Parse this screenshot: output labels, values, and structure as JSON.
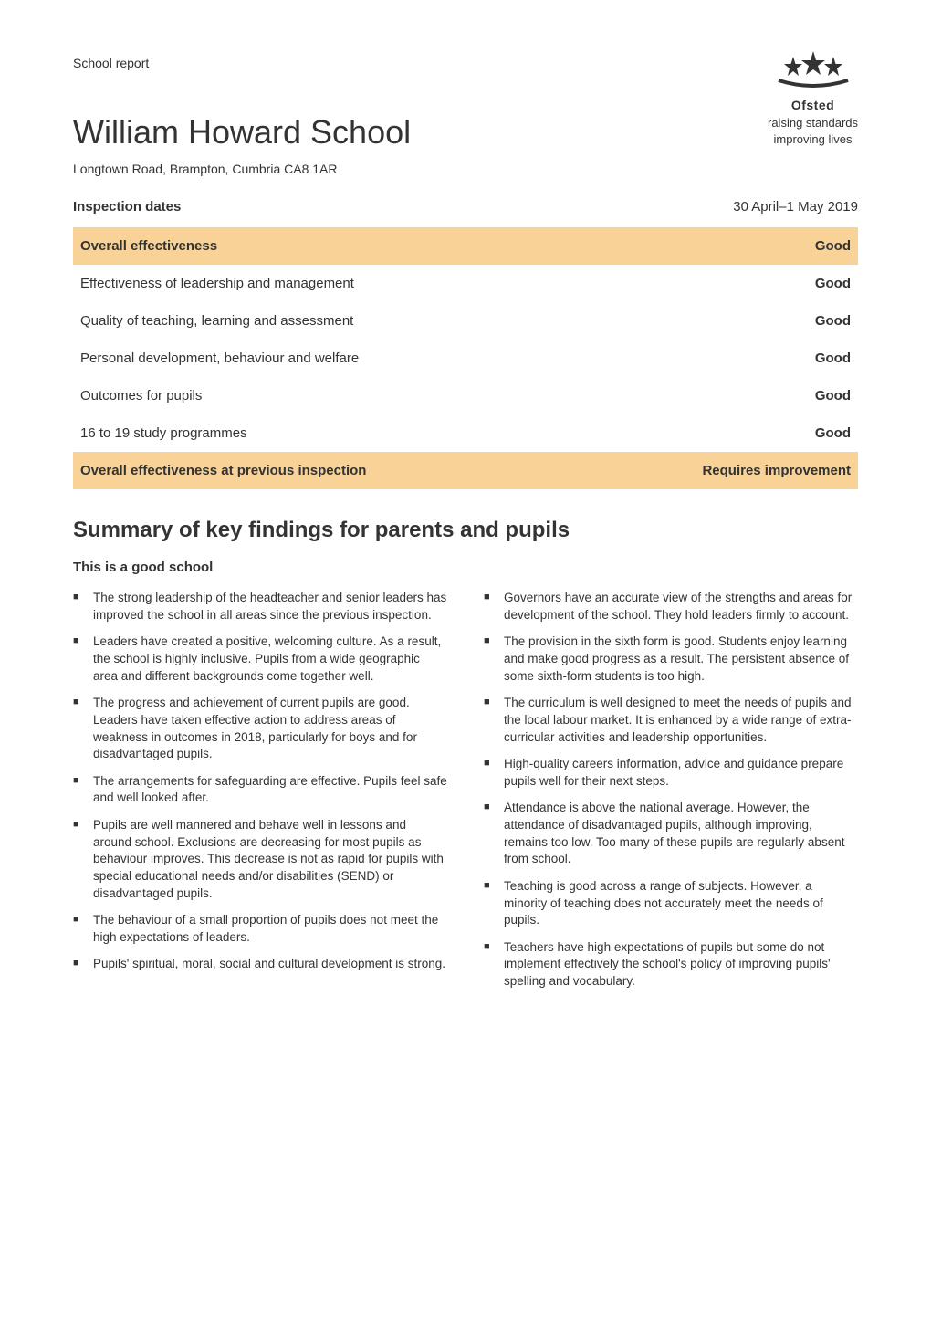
{
  "header": {
    "label": "School report",
    "logo": {
      "name": "Ofsted",
      "line2": "raising standards",
      "line3": "improving lives"
    }
  },
  "title": "William Howard School",
  "subtitle": "Longtown Road, Brampton, Cumbria CA8 1AR",
  "inspection": {
    "label": "Inspection dates",
    "dates": "30 April–1 May 2019"
  },
  "effectiveness": {
    "rows": [
      {
        "label": "Overall effectiveness",
        "value": "Good",
        "highlight": true
      },
      {
        "label": "Effectiveness of leadership and management",
        "value": "Good",
        "highlight": false
      },
      {
        "label": "Quality of teaching, learning and assessment",
        "value": "Good",
        "highlight": false
      },
      {
        "label": "Personal development, behaviour and welfare",
        "value": "Good",
        "highlight": false
      },
      {
        "label": "Outcomes for pupils",
        "value": "Good",
        "highlight": false
      },
      {
        "label": "16 to 19 study programmes",
        "value": "Good",
        "highlight": false
      },
      {
        "label": "Overall effectiveness at previous inspection",
        "value": "Requires improvement",
        "highlight": true
      }
    ],
    "highlight_color": "#f8d296"
  },
  "summary": {
    "heading": "Summary of key findings for parents and pupils",
    "subheading": "This is a good school",
    "left_bullets": [
      "The strong leadership of the headteacher and senior leaders has improved the school in all areas since the previous inspection.",
      "Leaders have created a positive, welcoming culture. As a result, the school is highly inclusive. Pupils from a wide geographic area and different backgrounds come together well.",
      "The progress and achievement of current pupils are good. Leaders have taken effective action to address areas of weakness in outcomes in 2018, particularly for boys and for disadvantaged pupils.",
      "The arrangements for safeguarding are effective. Pupils feel safe and well looked after.",
      "Pupils are well mannered and behave well in lessons and around school. Exclusions are decreasing for most pupils as behaviour improves. This decrease is not as rapid for pupils with special educational needs and/or disabilities (SEND) or disadvantaged pupils.",
      "The behaviour of a small proportion of pupils does not meet the high expectations of leaders.",
      "Pupils' spiritual, moral, social and cultural development is strong."
    ],
    "right_bullets": [
      "Governors have an accurate view of the strengths and areas for development of the school. They hold leaders firmly to account.",
      "The provision in the sixth form is good. Students enjoy learning and make good progress as a result. The persistent absence of some sixth-form students is too high.",
      "The curriculum is well designed to meet the needs of pupils and the local labour market. It is enhanced by a wide range of extra-curricular activities and leadership opportunities.",
      "High-quality careers information, advice and guidance prepare pupils well for their next steps.",
      "Attendance is above the national average. However, the attendance of disadvantaged pupils, although improving, remains too low. Too many of these pupils are regularly absent from school.",
      "Teaching is good across a range of subjects. However, a minority of teaching does not accurately meet the needs of pupils.",
      "Teachers have high expectations of pupils but some do not implement effectively the school's policy of improving pupils' spelling and vocabulary."
    ]
  }
}
